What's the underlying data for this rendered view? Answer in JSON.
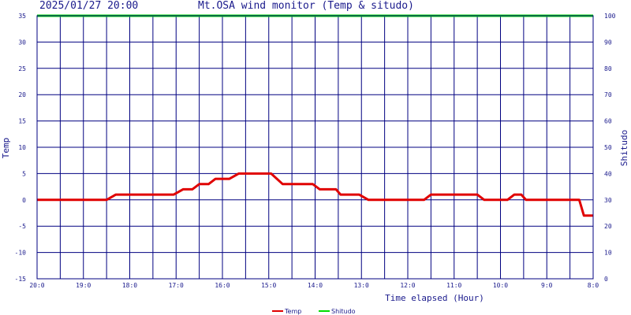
{
  "header": {
    "timestamp": "2025/01/27 20:00",
    "title": "Mt.OSA wind monitor (Temp & situdo)"
  },
  "chart_data": {
    "type": "line",
    "title": "Mt.OSA wind monitor (Temp & situdo)",
    "xlabel": "Time elapsed (Hour)",
    "ylabel": "Temp",
    "y2label": "Shitudo",
    "ylim": [
      -15,
      35
    ],
    "y2lim": [
      0,
      100
    ],
    "yticks": [
      "-15",
      "-10",
      "-5",
      "0",
      "5",
      "10",
      "15",
      "20",
      "25",
      "30",
      "35"
    ],
    "y2ticks": [
      "0",
      "10",
      "20",
      "30",
      "40",
      "50",
      "60",
      "70",
      "80",
      "90",
      "100"
    ],
    "xlim": [
      20,
      8
    ],
    "xticks": [
      {
        "x": 20,
        "label": "20:0"
      },
      {
        "x": 19,
        "label": "19:0"
      },
      {
        "x": 18,
        "label": "18:0"
      },
      {
        "x": 17,
        "label": "17:0"
      },
      {
        "x": 16,
        "label": "16:0"
      },
      {
        "x": 15,
        "label": "15:0"
      },
      {
        "x": 14,
        "label": "14:0"
      },
      {
        "x": 13,
        "label": "13:0"
      },
      {
        "x": 12,
        "label": "12:0"
      },
      {
        "x": 11,
        "label": "11:0"
      },
      {
        "x": 10,
        "label": "10:0"
      },
      {
        "x": 9,
        "label": "9:0"
      },
      {
        "x": 8,
        "label": "8:0"
      }
    ],
    "grid": true,
    "legend_position": "bottom-center",
    "series": [
      {
        "name": "Temp",
        "color": "#e00000",
        "axis": "left",
        "points": [
          [
            20.0,
            0
          ],
          [
            19.5,
            0
          ],
          [
            19.0,
            0
          ],
          [
            18.5,
            0
          ],
          [
            18.3,
            1
          ],
          [
            18.0,
            1
          ],
          [
            17.5,
            1
          ],
          [
            17.05,
            1
          ],
          [
            16.85,
            2
          ],
          [
            16.65,
            2
          ],
          [
            16.5,
            3
          ],
          [
            16.3,
            3
          ],
          [
            16.15,
            4
          ],
          [
            15.85,
            4
          ],
          [
            15.65,
            5
          ],
          [
            15.5,
            5
          ],
          [
            15.0,
            5
          ],
          [
            14.95,
            5
          ],
          [
            14.7,
            3
          ],
          [
            14.35,
            3
          ],
          [
            14.05,
            3
          ],
          [
            13.9,
            2
          ],
          [
            13.55,
            2
          ],
          [
            13.45,
            1
          ],
          [
            13.05,
            1
          ],
          [
            12.85,
            0
          ],
          [
            12.5,
            0
          ],
          [
            12.0,
            0
          ],
          [
            11.65,
            0
          ],
          [
            11.5,
            1
          ],
          [
            11.0,
            1
          ],
          [
            10.5,
            1
          ],
          [
            10.35,
            0
          ],
          [
            10.1,
            0
          ],
          [
            9.85,
            0
          ],
          [
            9.7,
            1
          ],
          [
            9.55,
            1
          ],
          [
            9.45,
            0
          ],
          [
            9.0,
            0
          ],
          [
            8.5,
            0
          ],
          [
            8.3,
            0
          ],
          [
            8.2,
            -3
          ],
          [
            8.0,
            -3
          ]
        ]
      },
      {
        "name": "Shitudo",
        "color": "#00dd00",
        "axis": "right",
        "points": [
          [
            20.0,
            100
          ],
          [
            8.0,
            100
          ]
        ]
      }
    ]
  }
}
